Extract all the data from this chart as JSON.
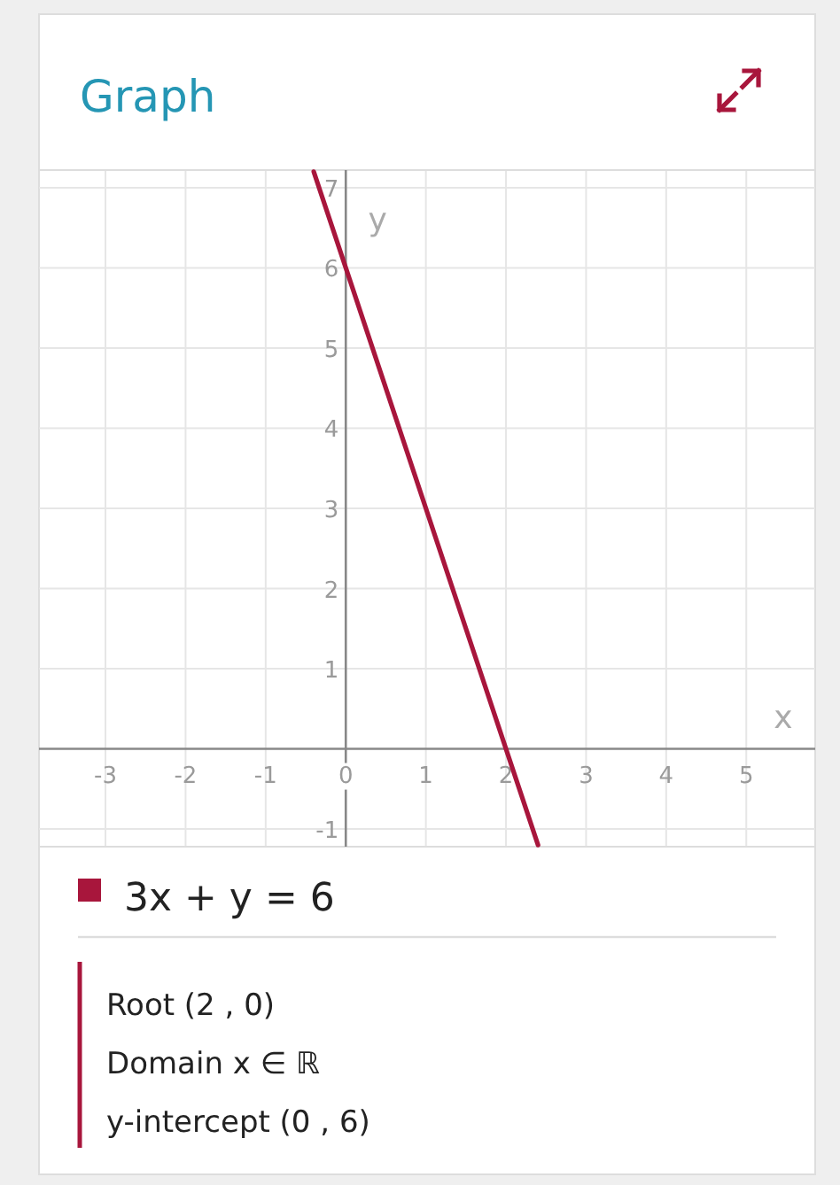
{
  "chart_data": {
    "type": "line",
    "title": "Graph",
    "xlabel": "x",
    "ylabel": "y",
    "xlim": [
      -3.83,
      5.86
    ],
    "ylim": [
      -1.22,
      7.22
    ],
    "xticks": [
      -3,
      -2,
      -1,
      0,
      1,
      2,
      3,
      4,
      5
    ],
    "yticks": [
      -1,
      1,
      2,
      3,
      4,
      5,
      6,
      7
    ],
    "grid": true,
    "legend": "bottom",
    "series": [
      {
        "name": "3x + y = 6",
        "color": "#a8163c",
        "x": [
          -0.4,
          0,
          2,
          2.4
        ],
        "values": [
          7.2,
          6,
          0,
          -1.2
        ]
      }
    ],
    "annotations": [
      "Root (2 , 0)",
      "Domain x ∈ ℝ",
      "y-intercept (0 , 6)"
    ]
  }
}
